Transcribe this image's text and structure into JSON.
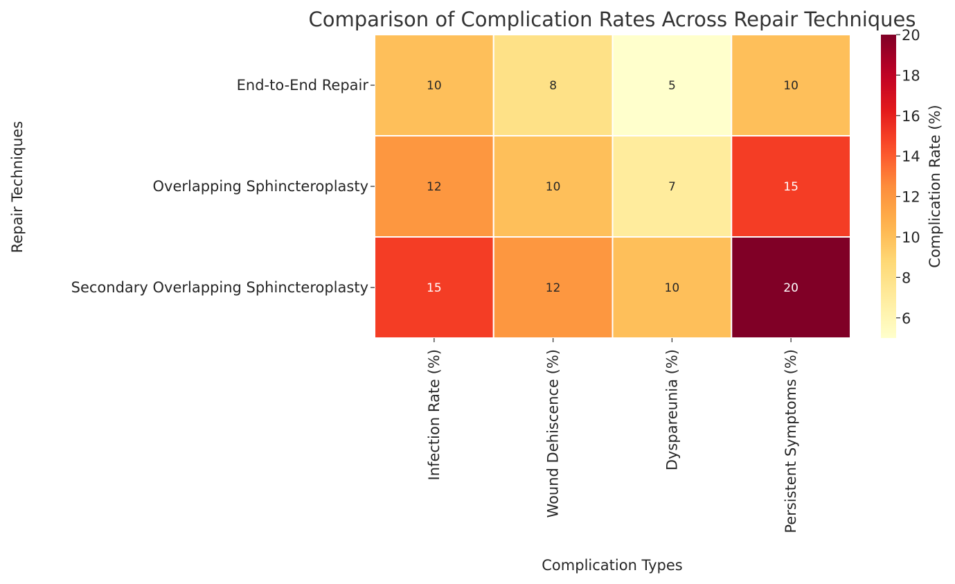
{
  "chart_data": {
    "type": "heatmap",
    "title": "Comparison of Complication Rates Across Repair Techniques",
    "xlabel": "Complication Types",
    "ylabel": "Repair Techniques",
    "columns": [
      "Infection Rate (%)",
      "Wound Dehiscence (%)",
      "Dyspareunia (%)",
      "Persistent Symptoms (%)"
    ],
    "rows": [
      "End-to-End Repair",
      "Overlapping Sphincteroplasty",
      "Secondary Overlapping Sphincteroplasty"
    ],
    "values": [
      [
        10,
        8,
        5,
        10
      ],
      [
        12,
        10,
        7,
        15
      ],
      [
        15,
        12,
        10,
        20
      ]
    ],
    "colorbar": {
      "label": "Complication Rate (%)",
      "range": [
        5,
        20
      ],
      "ticks": [
        6,
        8,
        10,
        12,
        14,
        16,
        18,
        20
      ],
      "colormap": "YlOrRd"
    },
    "colors": {
      "low": "#ffffcc",
      "high": "#800026"
    }
  }
}
